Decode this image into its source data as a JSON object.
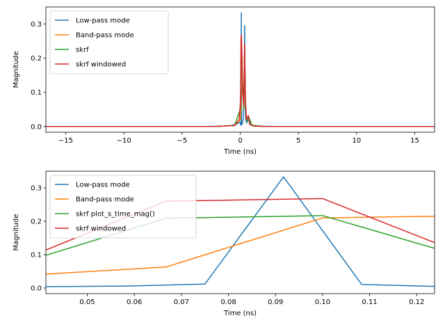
{
  "chart_data": [
    {
      "type": "line",
      "xlabel": "Time (ns)",
      "ylabel": "Magnitude",
      "xlim": [
        -16.7,
        16.7
      ],
      "ylim": [
        -0.0167,
        0.35
      ],
      "xticks": [
        -15,
        -10,
        -5,
        0,
        5,
        10,
        15
      ],
      "xtick_labels": [
        "−15",
        "−10",
        "−5",
        "0",
        "5",
        "10",
        "15"
      ],
      "yticks": [
        0.0,
        0.1,
        0.2,
        0.3
      ],
      "ytick_labels": [
        "0.0",
        "0.1",
        "0.2",
        "0.3"
      ],
      "grid": false,
      "legend_position": "upper-left",
      "series": [
        {
          "name": "Low-pass mode",
          "color": "#1f77b4",
          "x": [
            -16.7,
            -3.0,
            -1.5,
            -0.8,
            -0.4,
            -0.2,
            -0.08,
            0.0,
            0.04,
            0.075,
            0.092,
            0.108,
            0.125,
            0.2,
            0.25,
            0.3,
            0.35,
            0.38,
            0.41,
            0.44,
            0.48,
            0.55,
            0.65,
            0.75,
            0.85,
            0.95,
            1.1,
            1.5,
            3.0,
            16.7
          ],
          "y": [
            0.0,
            0.0,
            0.001,
            0.003,
            0.006,
            0.009,
            0.012,
            0.012,
            0.004,
            0.012,
            0.333,
            0.011,
            0.005,
            0.01,
            0.02,
            0.06,
            0.12,
            0.295,
            0.14,
            0.05,
            0.02,
            0.01,
            0.018,
            0.02,
            0.008,
            0.004,
            0.002,
            0.001,
            0.0,
            0.0
          ]
        },
        {
          "name": "Band-pass mode",
          "color": "#ff7f0e",
          "x": [
            -16.7,
            -2.0,
            -0.5,
            0.0,
            0.05,
            0.067,
            0.1,
            0.15,
            0.2,
            0.3,
            0.38,
            0.45,
            0.55,
            0.7,
            1.0,
            2.0,
            16.7
          ],
          "y": [
            0.0,
            0.0,
            0.003,
            0.02,
            0.05,
            0.063,
            0.21,
            0.2,
            0.12,
            0.05,
            0.23,
            0.06,
            0.015,
            0.03,
            0.004,
            0.0,
            0.0
          ]
        },
        {
          "name": "skrf",
          "color": "#2ca02c",
          "x": [
            -16.7,
            -2.0,
            -0.5,
            0.0,
            0.04,
            0.1,
            0.15,
            0.2,
            0.3,
            0.38,
            0.45,
            0.55,
            0.7,
            1.0,
            2.0,
            16.7
          ],
          "y": [
            0.0,
            0.0,
            0.003,
            0.05,
            0.1,
            0.217,
            0.2,
            0.12,
            0.05,
            0.23,
            0.06,
            0.015,
            0.03,
            0.004,
            0.0,
            0.0
          ]
        },
        {
          "name": "skrf windowed",
          "color": "#d62728",
          "x": [
            -16.7,
            -2.0,
            -0.5,
            -0.1,
            0.0,
            0.04,
            0.067,
            0.1,
            0.15,
            0.2,
            0.3,
            0.38,
            0.45,
            0.55,
            0.7,
            0.8,
            0.9,
            1.2,
            2.0,
            16.7
          ],
          "y": [
            0.0,
            0.0,
            0.003,
            0.02,
            0.06,
            0.114,
            0.26,
            0.268,
            0.2,
            0.1,
            0.06,
            0.242,
            0.07,
            0.02,
            0.032,
            0.008,
            0.004,
            0.001,
            0.0,
            0.0
          ]
        }
      ]
    },
    {
      "type": "line",
      "xlabel": "Time (ns)",
      "ylabel": "Magnitude",
      "xlim": [
        0.0412,
        0.1238
      ],
      "ylim": [
        -0.0167,
        0.35
      ],
      "xticks": [
        0.05,
        0.06,
        0.07,
        0.08,
        0.09,
        0.1,
        0.11,
        0.12
      ],
      "xtick_labels": [
        "0.05",
        "0.06",
        "0.07",
        "0.08",
        "0.09",
        "0.10",
        "0.11",
        "0.12"
      ],
      "yticks": [
        0.0,
        0.1,
        0.2,
        0.3
      ],
      "ytick_labels": [
        "0.0",
        "0.1",
        "0.2",
        "0.3"
      ],
      "grid": false,
      "legend_position": "upper-left",
      "series": [
        {
          "name": "Low-pass mode",
          "color": "#1f77b4",
          "x": [
            0.0412,
            0.0583,
            0.075,
            0.0917,
            0.1083,
            0.1238
          ],
          "y": [
            0.004,
            0.006,
            0.012,
            0.333,
            0.011,
            0.005
          ]
        },
        {
          "name": "Band-pass mode",
          "color": "#ff7f0e",
          "x": [
            0.0412,
            0.0667,
            0.1,
            0.1238
          ],
          "y": [
            0.042,
            0.063,
            0.21,
            0.215
          ]
        },
        {
          "name": "skrf plot_s_time_mag()",
          "color": "#2ca02c",
          "x": [
            0.0412,
            0.0667,
            0.1,
            0.1238
          ],
          "y": [
            0.098,
            0.209,
            0.217,
            0.119
          ]
        },
        {
          "name": "skrf windowed",
          "color": "#d62728",
          "x": [
            0.0412,
            0.0667,
            0.1,
            0.1238
          ],
          "y": [
            0.114,
            0.26,
            0.268,
            0.136
          ]
        }
      ]
    }
  ]
}
